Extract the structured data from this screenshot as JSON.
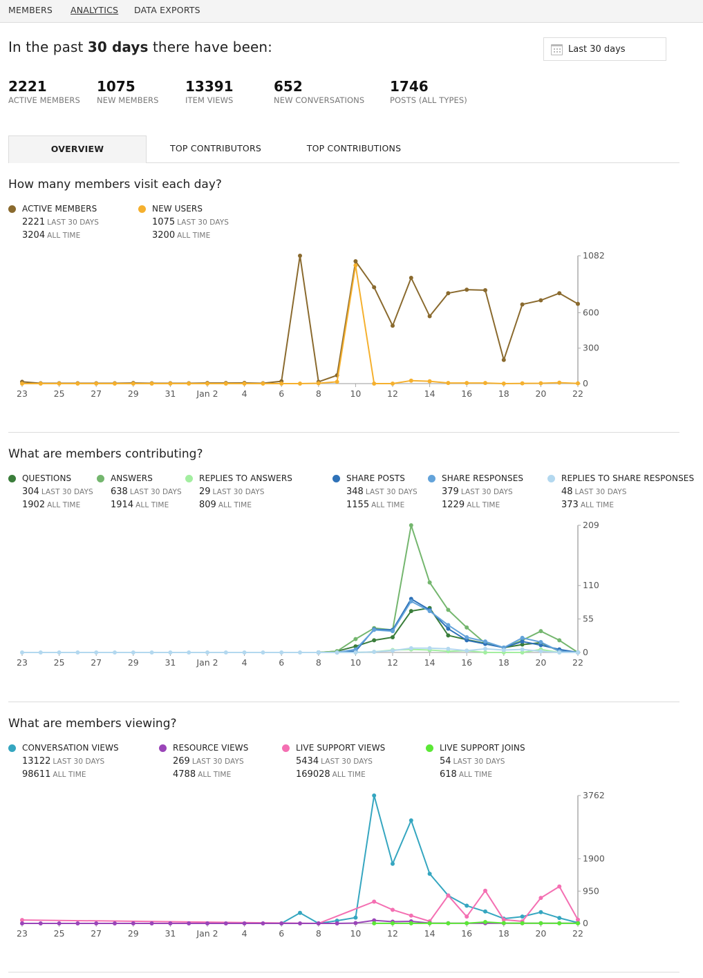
{
  "nav": {
    "items": [
      {
        "label": "MEMBERS",
        "active": false
      },
      {
        "label": "ANALYTICS",
        "active": true
      },
      {
        "label": "DATA EXPORTS",
        "active": false
      }
    ]
  },
  "headline": {
    "prefix": "In the past ",
    "bold": "30 days",
    "suffix": " there have been:"
  },
  "date_picker": {
    "icon": "calendar-icon",
    "label": "Last 30 days"
  },
  "stats": [
    {
      "value": "2221",
      "label": "ACTIVE MEMBERS"
    },
    {
      "value": "1075",
      "label": "NEW MEMBERS"
    },
    {
      "value": "13391",
      "label": "ITEM VIEWS"
    },
    {
      "value": "652",
      "label": "NEW CONVERSATIONS"
    },
    {
      "value": "1746",
      "label": "POSTS (ALL TYPES)"
    }
  ],
  "tabs": [
    {
      "label": "OVERVIEW",
      "active": true
    },
    {
      "label": "TOP CONTRIBUTORS",
      "active": false
    },
    {
      "label": "TOP CONTRIBUTIONS",
      "active": false
    }
  ],
  "legend_text": {
    "last30": "LAST 30 DAYS",
    "alltime": "ALL TIME"
  },
  "sections": [
    {
      "title": "How many members visit each day?",
      "legend": [
        {
          "name": "ACTIVE MEMBERS",
          "color": "#8a6a2e",
          "last30": "2221",
          "alltime": "3204"
        },
        {
          "name": "NEW USERS",
          "color": "#f5b02e",
          "last30": "1075",
          "alltime": "3200"
        }
      ]
    },
    {
      "title": "What are members contributing?",
      "legend": [
        {
          "name": "QUESTIONS",
          "color": "#3a7d3a",
          "last30": "304",
          "alltime": "1902"
        },
        {
          "name": "ANSWERS",
          "color": "#74b66e",
          "last30": "638",
          "alltime": "1914"
        },
        {
          "name": "REPLIES TO ANSWERS",
          "color": "#a3eea0",
          "last30": "29",
          "alltime": "809"
        },
        {
          "name": "SHARE POSTS",
          "color": "#2f72b8",
          "last30": "348",
          "alltime": "1155"
        },
        {
          "name": "SHARE RESPONSES",
          "color": "#63a3da",
          "last30": "379",
          "alltime": "1229"
        },
        {
          "name": "REPLIES TO SHARE RESPONSES",
          "color": "#b3d8ef",
          "last30": "48",
          "alltime": "373"
        }
      ]
    },
    {
      "title": "What are members viewing?",
      "legend": [
        {
          "name": "CONVERSATION VIEWS",
          "color": "#35a6c0",
          "last30": "13122",
          "alltime": "98611"
        },
        {
          "name": "RESOURCE VIEWS",
          "color": "#9a45b8",
          "last30": "269",
          "alltime": "4788"
        },
        {
          "name": "LIVE SUPPORT VIEWS",
          "color": "#f46fb2",
          "last30": "5434",
          "alltime": "169028"
        },
        {
          "name": "LIVE SUPPORT JOINS",
          "color": "#5be836",
          "last30": "54",
          "alltime": "618"
        }
      ]
    }
  ],
  "chart_data": [
    {
      "type": "line",
      "title": "How many members visit each day?",
      "x": [
        "23",
        "24",
        "25",
        "26",
        "27",
        "28",
        "29",
        "30",
        "31",
        "Jan 1",
        "Jan 2",
        "3",
        "4",
        "5",
        "6",
        "7",
        "8",
        "9",
        "10",
        "11",
        "12",
        "13",
        "14",
        "15",
        "16",
        "17",
        "18",
        "19",
        "20",
        "21",
        "22"
      ],
      "xtick_labels": [
        "23",
        "25",
        "27",
        "29",
        "31",
        "Jan 2",
        "4",
        "6",
        "8",
        "10",
        "12",
        "14",
        "16",
        "18",
        "20",
        "22"
      ],
      "yticks": [
        0,
        300,
        600,
        1082
      ],
      "ylim": [
        0,
        1082
      ],
      "y_axis_side": "right",
      "series": [
        {
          "name": "ACTIVE MEMBERS",
          "color": "#8a6a2e",
          "values": [
            15,
            3,
            3,
            3,
            3,
            3,
            5,
            3,
            3,
            3,
            5,
            5,
            6,
            3,
            20,
            1082,
            15,
            70,
            1035,
            815,
            490,
            895,
            570,
            765,
            795,
            790,
            200,
            670,
            705,
            765,
            675
          ]
        },
        {
          "name": "NEW USERS",
          "color": "#f5b02e",
          "values": [
            0,
            0,
            0,
            0,
            0,
            0,
            0,
            0,
            0,
            0,
            0,
            0,
            0,
            0,
            0,
            0,
            3,
            15,
            1000,
            0,
            0,
            25,
            20,
            5,
            5,
            5,
            0,
            2,
            3,
            8,
            2
          ]
        }
      ]
    },
    {
      "type": "line",
      "title": "What are members contributing?",
      "x": [
        "23",
        "24",
        "25",
        "26",
        "27",
        "28",
        "29",
        "30",
        "31",
        "Jan 1",
        "Jan 2",
        "3",
        "4",
        "5",
        "6",
        "7",
        "8",
        "9",
        "10",
        "11",
        "12",
        "13",
        "14",
        "15",
        "16",
        "17",
        "18",
        "19",
        "20",
        "21",
        "22"
      ],
      "xtick_labels": [
        "23",
        "25",
        "27",
        "29",
        "31",
        "Jan 2",
        "4",
        "6",
        "8",
        "10",
        "12",
        "14",
        "16",
        "18",
        "20",
        "22"
      ],
      "yticks": [
        0,
        55,
        110,
        209
      ],
      "ylim": [
        0,
        209
      ],
      "y_axis_side": "right",
      "series": [
        {
          "name": "QUESTIONS",
          "color": "#3a7d3a",
          "values": [
            null,
            null,
            null,
            null,
            null,
            null,
            null,
            null,
            null,
            null,
            null,
            null,
            null,
            null,
            null,
            null,
            0,
            2,
            10,
            20,
            25,
            68,
            73,
            28,
            21,
            15,
            8,
            13,
            16,
            2,
            0
          ]
        },
        {
          "name": "ANSWERS",
          "color": "#74b66e",
          "values": [
            null,
            null,
            null,
            null,
            null,
            null,
            null,
            null,
            null,
            null,
            null,
            null,
            null,
            null,
            null,
            null,
            0,
            2,
            22,
            40,
            37,
            209,
            115,
            70,
            41,
            15,
            8,
            20,
            35,
            20,
            0
          ]
        },
        {
          "name": "REPLIES TO ANSWERS",
          "color": "#a3eea0",
          "values": [
            null,
            null,
            null,
            null,
            null,
            null,
            null,
            null,
            null,
            null,
            null,
            null,
            null,
            null,
            null,
            null,
            null,
            null,
            0,
            1,
            4,
            5,
            4,
            2,
            3,
            0,
            0,
            0,
            5,
            0,
            0
          ]
        },
        {
          "name": "SHARE POSTS",
          "color": "#2f72b8",
          "values": [
            null,
            null,
            null,
            null,
            null,
            null,
            null,
            null,
            null,
            null,
            null,
            null,
            null,
            null,
            null,
            null,
            0,
            0,
            2,
            38,
            37,
            88,
            70,
            39,
            20,
            14,
            8,
            18,
            12,
            5,
            0
          ]
        },
        {
          "name": "SHARE RESPONSES",
          "color": "#63a3da",
          "values": [
            null,
            null,
            null,
            null,
            null,
            null,
            null,
            null,
            null,
            null,
            null,
            null,
            null,
            null,
            null,
            null,
            0,
            0,
            5,
            37,
            35,
            84,
            68,
            45,
            25,
            18,
            8,
            24,
            17,
            2,
            0
          ]
        },
        {
          "name": "REPLIES TO SHARE RESPONSES",
          "color": "#b3d8ef",
          "values": [
            0,
            0,
            0,
            0,
            0,
            0,
            0,
            0,
            0,
            0,
            0,
            0,
            0,
            0,
            0,
            0,
            0,
            0,
            0,
            1,
            3,
            7,
            7,
            6,
            3,
            6,
            4,
            5,
            2,
            0,
            0
          ]
        }
      ]
    },
    {
      "type": "line",
      "title": "What are members viewing?",
      "x": [
        "23",
        "24",
        "25",
        "26",
        "27",
        "28",
        "29",
        "30",
        "31",
        "Jan 1",
        "Jan 2",
        "3",
        "4",
        "5",
        "6",
        "7",
        "8",
        "9",
        "10",
        "11",
        "12",
        "13",
        "14",
        "15",
        "16",
        "17",
        "18",
        "19",
        "20",
        "21",
        "22"
      ],
      "xtick_labels": [
        "23",
        "25",
        "27",
        "29",
        "31",
        "Jan 2",
        "4",
        "6",
        "8",
        "10",
        "12",
        "14",
        "16",
        "18",
        "20",
        "22"
      ],
      "yticks": [
        0,
        950,
        1900,
        3762
      ],
      "ylim": [
        0,
        3762
      ],
      "y_axis_side": "right",
      "series": [
        {
          "name": "CONVERSATION VIEWS",
          "color": "#35a6c0",
          "values": [
            null,
            null,
            null,
            null,
            null,
            null,
            null,
            null,
            null,
            null,
            null,
            null,
            null,
            null,
            0,
            310,
            0,
            80,
            170,
            3762,
            1755,
            3030,
            1460,
            820,
            520,
            350,
            140,
            200,
            330,
            160,
            20
          ]
        },
        {
          "name": "LIVE SUPPORT VIEWS",
          "color": "#f46fb2",
          "values": [
            100,
            null,
            null,
            null,
            null,
            null,
            null,
            null,
            null,
            null,
            null,
            null,
            null,
            null,
            null,
            null,
            0,
            null,
            null,
            640,
            400,
            230,
            60,
            820,
            200,
            960,
            110,
            60,
            750,
            1085,
            110
          ]
        },
        {
          "name": "RESOURCE VIEWS",
          "color": "#9a45b8",
          "values": [
            0,
            0,
            0,
            0,
            0,
            0,
            0,
            0,
            0,
            0,
            0,
            0,
            0,
            0,
            0,
            0,
            0,
            0,
            10,
            90,
            50,
            60,
            10,
            5,
            5,
            5,
            5,
            5,
            5,
            5,
            5
          ]
        },
        {
          "name": "LIVE SUPPORT JOINS",
          "color": "#5be836",
          "values": [
            null,
            null,
            null,
            null,
            null,
            null,
            null,
            null,
            null,
            null,
            null,
            null,
            null,
            null,
            null,
            null,
            null,
            null,
            null,
            2,
            2,
            2,
            2,
            2,
            5,
            40,
            10,
            5,
            5,
            2,
            2
          ]
        }
      ]
    }
  ]
}
